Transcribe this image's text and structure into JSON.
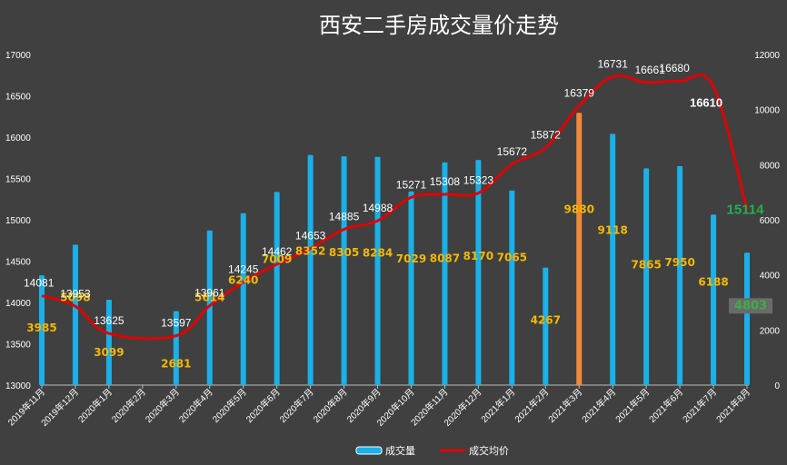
{
  "chart_data": {
    "type": "bar+line",
    "title": "西安二手房成交量价走势",
    "categories": [
      "2019年11月",
      "2019年12月",
      "2020年1月",
      "2020年2月",
      "2020年3月",
      "2020年4月",
      "2020年5月",
      "2020年6月",
      "2020年7月",
      "2020年8月",
      "2020年9月",
      "2020年10月",
      "2020年11月",
      "2020年12月",
      "2021年1月",
      "2021年2月",
      "2021年3月",
      "2021年4月",
      "2021年5月",
      "2021年6月",
      "2021年7月",
      "2021年8月"
    ],
    "left_axis": {
      "min": 13000,
      "max": 17000,
      "ticks": [
        "13000",
        "13500",
        "14000",
        "14500",
        "15000",
        "15500",
        "16000",
        "16500",
        "17000"
      ]
    },
    "right_axis": {
      "min": 0,
      "max": 12000,
      "ticks": [
        "0",
        "2000",
        "4000",
        "6000",
        "8000",
        "10000",
        "12000"
      ]
    },
    "series": [
      {
        "name": "成交量",
        "axis": "right",
        "color": "#1ab0e8",
        "highlight_color": "#f0883a",
        "highlight_index": 16,
        "values": [
          3985,
          5098,
          3099,
          null,
          2681,
          5614,
          6240,
          7009,
          8352,
          8305,
          8284,
          7029,
          8087,
          8170,
          7065,
          4267,
          9880,
          9118,
          7865,
          7950,
          6188,
          4803
        ],
        "labels": [
          "3985",
          "5098",
          "3099",
          "",
          "2681",
          "5614",
          "6240",
          "7009",
          "8352",
          "8305",
          "8284",
          "7029",
          "8087",
          "8170",
          "7065",
          "4267",
          "9880",
          "9118",
          "7865",
          "7950",
          "6188",
          "4803"
        ]
      },
      {
        "name": "成交均价",
        "axis": "left",
        "color": "#e00000",
        "values": [
          14081,
          13953,
          13625,
          null,
          13597,
          13961,
          14245,
          14462,
          14653,
          14885,
          14988,
          15271,
          15308,
          15323,
          15672,
          15872,
          16379,
          16731,
          16661,
          16680,
          16610,
          15114
        ],
        "labels": [
          "14081",
          "13953",
          "13625",
          "",
          "13597",
          "13961",
          "14245",
          "14462",
          "14653",
          "14885",
          "14988",
          "15271",
          "15308",
          "15323",
          "15672",
          "15872",
          "16379",
          "16731",
          "16661",
          "16680",
          "16610",
          "15114"
        ]
      }
    ],
    "legend_position": "bottom",
    "grid": false
  }
}
